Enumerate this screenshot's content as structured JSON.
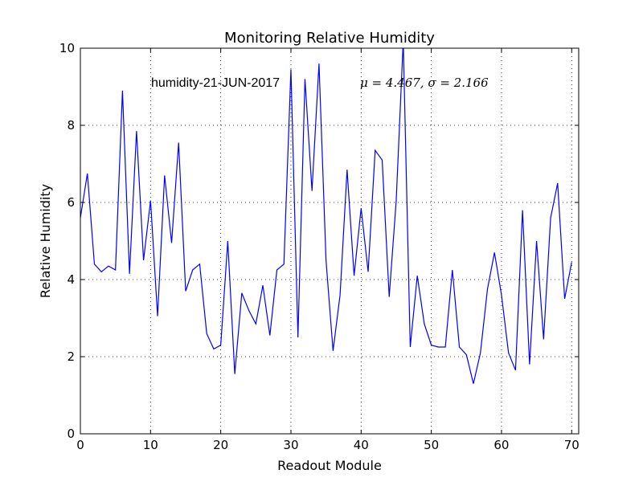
{
  "chart_data": {
    "type": "line",
    "title": "Monitoring Relative Humidity",
    "xlabel": "Readout Module",
    "ylabel": "Relative Humidity",
    "xlim": [
      0,
      71
    ],
    "ylim": [
      0,
      10
    ],
    "xticks": [
      0,
      10,
      20,
      30,
      40,
      50,
      60,
      70
    ],
    "yticks": [
      0,
      2,
      4,
      6,
      8,
      10
    ],
    "grid": true,
    "line_color": "#0000ff",
    "annotations": {
      "label": "humidity-21-JUN-2017",
      "stats": "μ = 4.467,  σ = 2.166"
    },
    "series": [
      {
        "x": [
          0,
          1,
          2,
          3,
          4,
          5,
          6,
          7,
          8,
          9,
          10,
          11,
          12,
          13,
          14,
          15,
          16,
          17,
          18,
          19,
          20,
          21,
          22,
          23,
          24,
          25,
          26,
          27,
          28,
          29,
          30,
          31,
          32,
          33,
          34,
          35,
          36,
          37,
          38,
          39,
          40,
          41,
          42,
          43,
          44,
          45,
          46,
          47,
          48,
          49,
          50,
          51,
          52,
          53,
          54,
          55,
          56,
          57,
          58,
          59,
          60,
          61,
          62,
          63,
          64,
          65,
          66,
          67,
          68,
          69,
          70
        ],
        "values": [
          5.6,
          6.75,
          4.4,
          4.2,
          4.35,
          4.25,
          8.9,
          4.15,
          7.85,
          4.5,
          6.05,
          3.05,
          6.7,
          4.95,
          7.55,
          3.7,
          4.25,
          4.4,
          2.6,
          2.2,
          2.3,
          5.0,
          1.55,
          3.65,
          3.2,
          2.85,
          3.85,
          2.55,
          4.25,
          4.4,
          9.45,
          2.5,
          9.2,
          6.3,
          9.6,
          4.5,
          2.15,
          3.6,
          6.85,
          4.1,
          5.85,
          4.2,
          7.35,
          7.1,
          3.55,
          6.05,
          10.2,
          2.25,
          4.1,
          2.85,
          2.3,
          2.25,
          2.25,
          4.25,
          2.25,
          2.05,
          1.3,
          2.1,
          3.75,
          4.7,
          3.6,
          2.1,
          1.65,
          5.8,
          1.8,
          5.0,
          2.45,
          5.6,
          6.5,
          3.5,
          4.45
        ]
      }
    ]
  }
}
